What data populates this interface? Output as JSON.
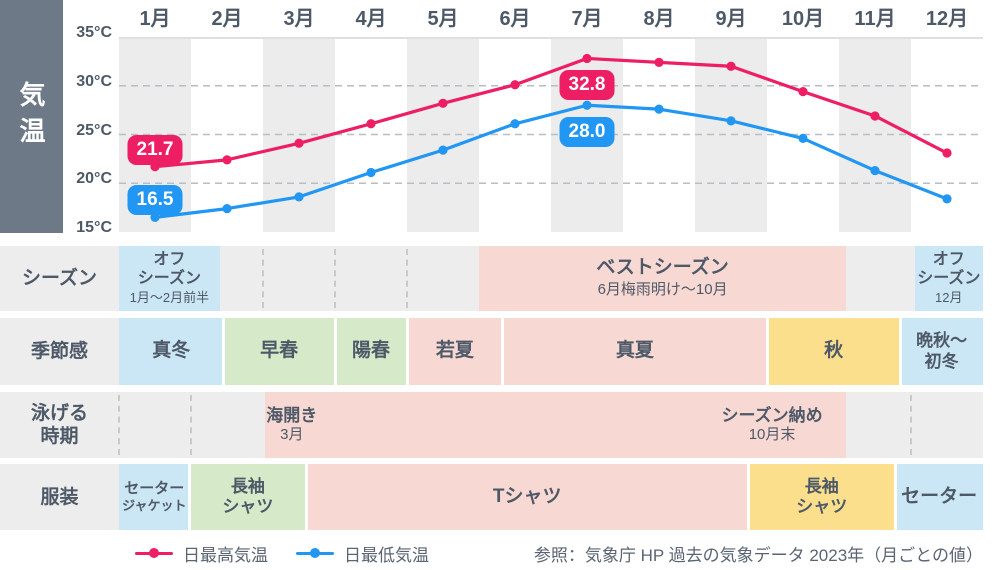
{
  "theme": {
    "max_color": "#ed1e63",
    "min_color": "#2196f3",
    "cell_colors": {
      "blue": "#cbe7f5",
      "green": "#d6e9c9",
      "pink": "#f8d8d2",
      "yellow": "#fbdf8d"
    },
    "sidebar_bg": "#6e7987",
    "text_color": "#4e5968",
    "row_bg": "#ededed",
    "stripe_color": "#ececec"
  },
  "chart_data": {
    "type": "line",
    "title": "気温",
    "x_categories": [
      "1月",
      "2月",
      "3月",
      "4月",
      "5月",
      "6月",
      "7月",
      "8月",
      "9月",
      "10月",
      "11月",
      "12月"
    ],
    "y_ticks": [
      "35°C",
      "30°C",
      "25°C",
      "20°C",
      "15°C"
    ],
    "ylim": [
      15,
      35
    ],
    "gridlines": [
      30,
      25,
      20
    ],
    "grid_style": "dashed",
    "legend_position": "bottom",
    "series": [
      {
        "name": "日最高気温",
        "color": "#ed1e63",
        "values": [
          21.7,
          22.4,
          24.1,
          26.1,
          28.2,
          30.1,
          32.8,
          32.4,
          32.0,
          29.4,
          26.9,
          23.1
        ]
      },
      {
        "name": "日最低気温",
        "color": "#2196f3",
        "values": [
          16.5,
          17.4,
          18.6,
          21.1,
          23.4,
          26.1,
          28.0,
          27.6,
          26.4,
          24.6,
          21.3,
          18.4
        ]
      }
    ],
    "annotations": [
      {
        "series": 0,
        "month_index": 0,
        "label": "21.7",
        "placement": "above"
      },
      {
        "series": 1,
        "month_index": 0,
        "label": "16.5",
        "placement": "above"
      },
      {
        "series": 0,
        "month_index": 6,
        "label": "32.8",
        "placement": "below"
      },
      {
        "series": 1,
        "month_index": 6,
        "label": "28.0",
        "placement": "below"
      }
    ]
  },
  "rows": [
    {
      "label_lines": [
        "シーズン"
      ],
      "dashes": [
        2,
        3,
        4
      ],
      "cells": [
        {
          "color": "blue",
          "lines": [
            "オフ",
            "シーズン"
          ],
          "sub": "1月〜2月前半",
          "compact": true,
          "start": 0,
          "end": 1.4
        },
        {
          "color": "pink",
          "lines": [
            "ベストシーズン"
          ],
          "sub": "6月梅雨明け〜10月",
          "sub_large": true,
          "start": 5,
          "end": 10.1
        },
        {
          "color": "blue",
          "lines": [
            "オフ",
            "シーズン"
          ],
          "sub": "12月",
          "compact": true,
          "start": 11.05,
          "end": 12
        }
      ]
    },
    {
      "label_lines": [
        "季節感"
      ],
      "dashes": [],
      "cells": [
        {
          "color": "blue",
          "lines": [
            "真冬"
          ],
          "start": 0,
          "end": 1.45
        },
        {
          "color": "green",
          "lines": [
            "早春"
          ],
          "start": 1.45,
          "end": 3
        },
        {
          "color": "green",
          "lines": [
            "陽春"
          ],
          "start": 3,
          "end": 4
        },
        {
          "color": "pink",
          "lines": [
            "若夏"
          ],
          "start": 4,
          "end": 5.33
        },
        {
          "color": "pink",
          "lines": [
            "真夏"
          ],
          "start": 5.33,
          "end": 9
        },
        {
          "color": "yellow",
          "lines": [
            "秋"
          ],
          "start": 9,
          "end": 10.85
        },
        {
          "color": "blue",
          "lines": [
            "晩秋〜",
            "初冬"
          ],
          "start": 10.85,
          "end": 12
        }
      ]
    },
    {
      "label_lines": [
        "泳げる",
        "時期"
      ],
      "dashes": [
        0,
        1,
        11
      ],
      "cells": [
        {
          "color": "pink",
          "start": 2.03,
          "end": 10.1,
          "blocks": [
            {
              "main": "海開き",
              "sub": "3月",
              "at": 2.4
            },
            {
              "main": "シーズン納め",
              "sub": "10月末",
              "at": 9.07
            }
          ]
        }
      ]
    },
    {
      "label_lines": [
        "服装"
      ],
      "dashes": [],
      "cells": [
        {
          "color": "blue",
          "lines": [
            "セーター",
            "ジャケット"
          ],
          "small": true,
          "start": 0,
          "end": 0.98
        },
        {
          "color": "green",
          "lines": [
            "長袖",
            "シャツ"
          ],
          "start": 0.98,
          "end": 2.6
        },
        {
          "color": "pink",
          "lines": [
            "Tシャツ"
          ],
          "start": 2.6,
          "end": 8.74
        },
        {
          "color": "yellow",
          "lines": [
            "長袖",
            "シャツ"
          ],
          "start": 8.74,
          "end": 10.78
        },
        {
          "color": "blue",
          "lines": [
            "セーター"
          ],
          "start": 10.78,
          "end": 12
        }
      ]
    }
  ],
  "legend": {
    "items": [
      {
        "label": "日最高気温",
        "color": "#ed1e63"
      },
      {
        "label": "日最低気温",
        "color": "#2196f3"
      }
    ],
    "source": "参照：気象庁 HP 過去の気象データ 2023年（月ごとの値）"
  }
}
